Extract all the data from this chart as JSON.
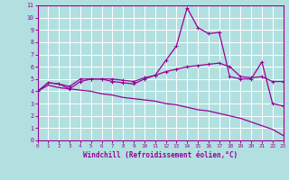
{
  "xlabel": "Windchill (Refroidissement éolien,°C)",
  "background_color": "#b2e0e0",
  "grid_color": "#ffffff",
  "line_color": "#990099",
  "xlim": [
    0,
    23
  ],
  "ylim": [
    0,
    11
  ],
  "xticks": [
    0,
    1,
    2,
    3,
    4,
    5,
    6,
    7,
    8,
    9,
    10,
    11,
    12,
    13,
    14,
    15,
    16,
    17,
    18,
    19,
    20,
    21,
    22,
    23
  ],
  "yticks": [
    0,
    1,
    2,
    3,
    4,
    5,
    6,
    7,
    8,
    9,
    10,
    11
  ],
  "series1_x": [
    0,
    1,
    2,
    3,
    4,
    5,
    6,
    7,
    8,
    9,
    10,
    11,
    12,
    13,
    14,
    15,
    16,
    17,
    18,
    19,
    20,
    21,
    22,
    23
  ],
  "series1_y": [
    4.0,
    4.7,
    4.6,
    4.2,
    4.8,
    5.0,
    5.0,
    4.8,
    4.7,
    4.6,
    5.0,
    5.3,
    6.5,
    7.7,
    10.8,
    9.2,
    8.7,
    8.8,
    5.2,
    5.0,
    5.0,
    6.4,
    3.0,
    2.8
  ],
  "series2_x": [
    0,
    1,
    2,
    3,
    4,
    5,
    6,
    7,
    8,
    9,
    10,
    11,
    12,
    13,
    14,
    15,
    16,
    17,
    18,
    19,
    20,
    21,
    22,
    23
  ],
  "series2_y": [
    4.0,
    4.7,
    4.6,
    4.4,
    5.0,
    5.0,
    5.0,
    5.0,
    4.9,
    4.8,
    5.1,
    5.3,
    5.6,
    5.8,
    6.0,
    6.1,
    6.2,
    6.3,
    6.0,
    5.2,
    5.1,
    5.2,
    4.8,
    4.8
  ],
  "series3_x": [
    0,
    1,
    2,
    3,
    4,
    5,
    6,
    7,
    8,
    9,
    10,
    11,
    12,
    13,
    14,
    15,
    16,
    17,
    18,
    19,
    20,
    21,
    22,
    23
  ],
  "series3_y": [
    4.0,
    4.5,
    4.3,
    4.2,
    4.1,
    4.0,
    3.8,
    3.7,
    3.5,
    3.4,
    3.3,
    3.2,
    3.0,
    2.9,
    2.7,
    2.5,
    2.4,
    2.2,
    2.0,
    1.8,
    1.5,
    1.2,
    0.9,
    0.4
  ],
  "marker": "+"
}
